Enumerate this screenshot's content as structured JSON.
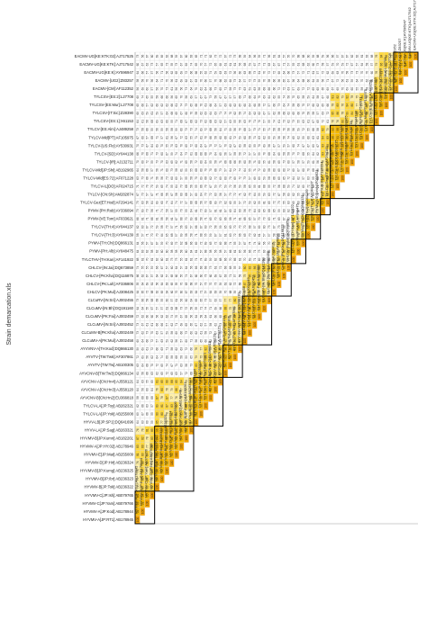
{
  "page": {
    "title": "Strain demarcation.xls"
  },
  "colors": {
    "high": "#f5b800",
    "mid": "#ffd940",
    "low": "#fff0a8",
    "diag": "#f5a300",
    "grid": "#d6d6d6",
    "box": "#000000"
  },
  "chart_data": {
    "type": "heatmap",
    "title": "",
    "value_unit": "percent identity",
    "strains": [
      "HYVMV-A[JP:RT1]:AB178945",
      "HYVMV-A[JP:Kod]:AB178944",
      "HYVMV-C[JP:Yam]:AB079766",
      "HYVMV-C[JP:Ish]:AB079765",
      "HYVMV-B[JP:Tok]:AB236322",
      "HYVMV-B[JP:Ibr]:AB236323",
      "HYVMV-B[JP:Kumg]:AB236325",
      "HYVMV-D[JP:Hir]:AB236324",
      "HYVMV-E[JP:Mat]:AB255009",
      "HYVMV-A[JP:HY:02]:AB178946",
      "HYVMV-B[JP:Kumn]:AB182261",
      "HYVV-LA[JP:Sag]:AB263321",
      "HYVV-LB[JP:SP1]:DQ641696",
      "TYLCV-LA[JP:Yok]:AB255008",
      "TYLCV-LA[JP:Toy]:AB262321",
      "AYVCNV-B[CN:Hn2]:EU366818",
      "AYVCNV-A[CN:Hn3]:AJ558120",
      "AYVCNV-A[CN:Hn4]:AJ558121",
      "AYVCNV-B[TW:Tw3]:DQ866134",
      "AYVTV-[TW:Tw]:AB100305",
      "AYVTV-[TW:Tw6]:AF307861",
      "AYVVNV-A[TH:Kod]:DQ866130",
      "CLCuMV-A[PK:Mul]:AJ002458",
      "CLCuMV-B[PK:Kha]:AJ002449",
      "CLCuMV-[IN:Sri]:AJ002452",
      "CLCuMV-[PK:Fai]:AJ002459",
      "CLCuMV-[IN:Bh]:DQ191160",
      "CLCuRV-[IN:Sri]:AJ002455",
      "CHLCV-[PK:Mul]:AJ308425",
      "CHLCV-[PK:Lah]:AF336806",
      "CHLCV-[PK:Kha]:DQ116875",
      "CHLCV-[IN:Jai]:DQ673859",
      "TYLCTHV-[TH:Kan]:AF141922",
      "PYMV-[PH:Alb]:AY848475",
      "PYMV-[TH:Chi]:DQ866131",
      "TYLCV-[TH:3]:AY044139",
      "TYLCV-[TH:4]:AY044137",
      "PYMV-[VE:Tom]:AF033621",
      "PYMV-[PH:Rob]:AY336094",
      "TYLCV-Gez[ET:Hod]:AF294141",
      "TYLCV-[CN:Sh]:AM282874",
      "TYLCV-IL[DO]:AF024715",
      "TYLCV-Mld[ES:72]:AF071228",
      "TYLCV-Mld[JP:Shi]:AB192965",
      "TYLCV-[IR]:AJ132711",
      "TYLCV-[SD]:AY044138",
      "TYLCV-[US:Flo]:AY530931",
      "TYLCV-Mld[PT]:AF105975",
      "TYLCV-[ES:Alm]:AJ489258",
      "TYLCSV-[ES:1]:X61153",
      "TYLCSV-[IT:Sic]:Z28390",
      "TYLCSV-[ES:Mur]:L27708",
      "TYLCSV-[ES:2]:L27708",
      "EACMV-[CM]:AF112352",
      "EACMV-[UG2]:Z83257",
      "EACMV-UG[KE:K]:AY596947",
      "EACMV-UG[KE:KTK]:AJ717542",
      "EACMV-UG[KE:KTK:02]:AJ717525"
    ],
    "groups": [
      {
        "start": 0,
        "end": 4
      },
      {
        "start": 4,
        "end": 12
      },
      {
        "start": 12,
        "end": 18
      },
      {
        "start": 18,
        "end": 22
      },
      {
        "start": 22,
        "end": 28
      },
      {
        "start": 28,
        "end": 32
      },
      {
        "start": 32,
        "end": 35
      },
      {
        "start": 35,
        "end": 38
      },
      {
        "start": 38,
        "end": 40
      },
      {
        "start": 40,
        "end": 49
      },
      {
        "start": 49,
        "end": 53
      },
      {
        "start": 53,
        "end": 58
      }
    ],
    "gen": {
      "seed": 7,
      "group_range": [
        90,
        99
      ],
      "near_range": [
        75,
        89
      ],
      "far_range": [
        55,
        74
      ],
      "diag_value": 100
    }
  }
}
